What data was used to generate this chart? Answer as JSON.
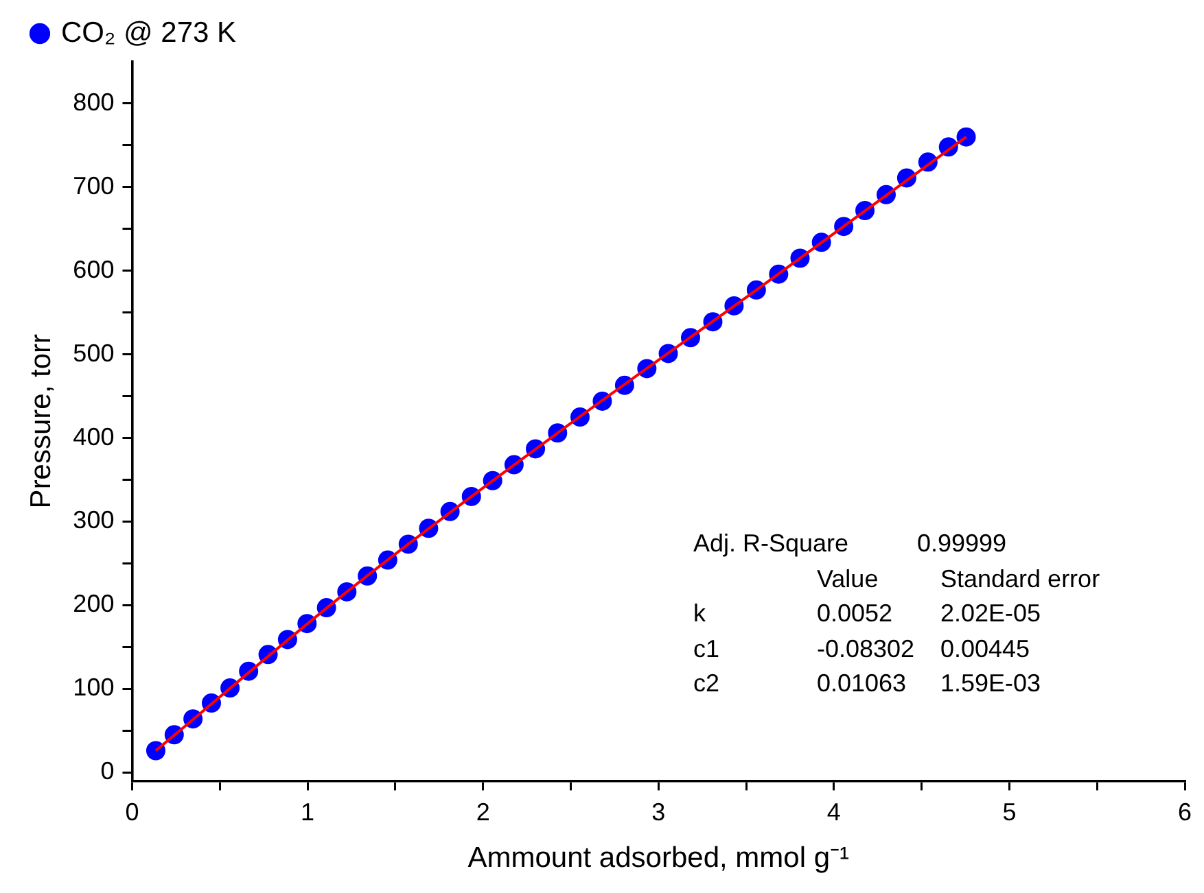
{
  "chart_data": {
    "type": "scatter",
    "xlabel": "Ammount adsorbed, mmol g⁻¹",
    "ylabel": "Pressure, torr",
    "xlim": [
      0,
      6
    ],
    "ylim": [
      -10,
      850
    ],
    "xticks": [
      0,
      {
        "value": 0.5,
        "label": null
      },
      1,
      {
        "value": 1.5,
        "label": null
      },
      2,
      {
        "value": 2.5,
        "label": null
      },
      3,
      {
        "value": 3.5,
        "label": null
      },
      4,
      {
        "value": 4.5,
        "label": null
      },
      5,
      {
        "value": 5.5,
        "label": null
      },
      6
    ],
    "yticks": [
      0,
      {
        "value": 50,
        "label": null
      },
      100,
      {
        "value": 150,
        "label": null
      },
      200,
      {
        "value": 250,
        "label": null
      },
      300,
      {
        "value": 350,
        "label": null
      },
      400,
      {
        "value": 450,
        "label": null
      },
      500,
      {
        "value": 550,
        "label": null
      },
      600,
      {
        "value": 650,
        "label": null
      },
      700,
      {
        "value": 750,
        "label": null
      },
      800
    ],
    "grid": false,
    "legend": "top left",
    "series": [
      {
        "name": "CO₂ @ 273 K",
        "marker": "circle",
        "color": "#0000ff",
        "x": [
          0.135,
          0.24,
          0.347,
          0.452,
          0.558,
          0.664,
          0.775,
          0.886,
          0.997,
          1.108,
          1.224,
          1.341,
          1.457,
          1.574,
          1.69,
          1.812,
          1.934,
          2.055,
          2.177,
          2.299,
          2.425,
          2.553,
          2.68,
          2.807,
          2.934,
          3.056,
          3.183,
          3.31,
          3.431,
          3.558,
          3.685,
          3.807,
          3.929,
          4.056,
          4.177,
          4.298,
          4.415,
          4.536,
          4.653,
          4.754
        ],
        "values": [
          26,
          45,
          64,
          83,
          101,
          121,
          141,
          159,
          178,
          197,
          216,
          235,
          254,
          273,
          292,
          312,
          330,
          349,
          368,
          387,
          406,
          425,
          444,
          463,
          483,
          501,
          520,
          539,
          558,
          577,
          596,
          615,
          634,
          653,
          672,
          691,
          711,
          730,
          748,
          760
        ]
      },
      {
        "type": "line",
        "marker": "none",
        "color": "#ff0000",
        "x": [
          0.135,
          1.224,
          2.425,
          3.558,
          4.754
        ],
        "values": [
          26,
          216,
          406,
          577,
          760
        ]
      }
    ],
    "annotations": [
      "Adj. R-Square",
      "0.99999",
      "Value",
      "Standard error",
      "k",
      "0.0052",
      "2.02E-05",
      "c1",
      "-0.08302",
      "0.00445",
      "c2",
      "0.01063",
      "1.59E-03"
    ]
  }
}
